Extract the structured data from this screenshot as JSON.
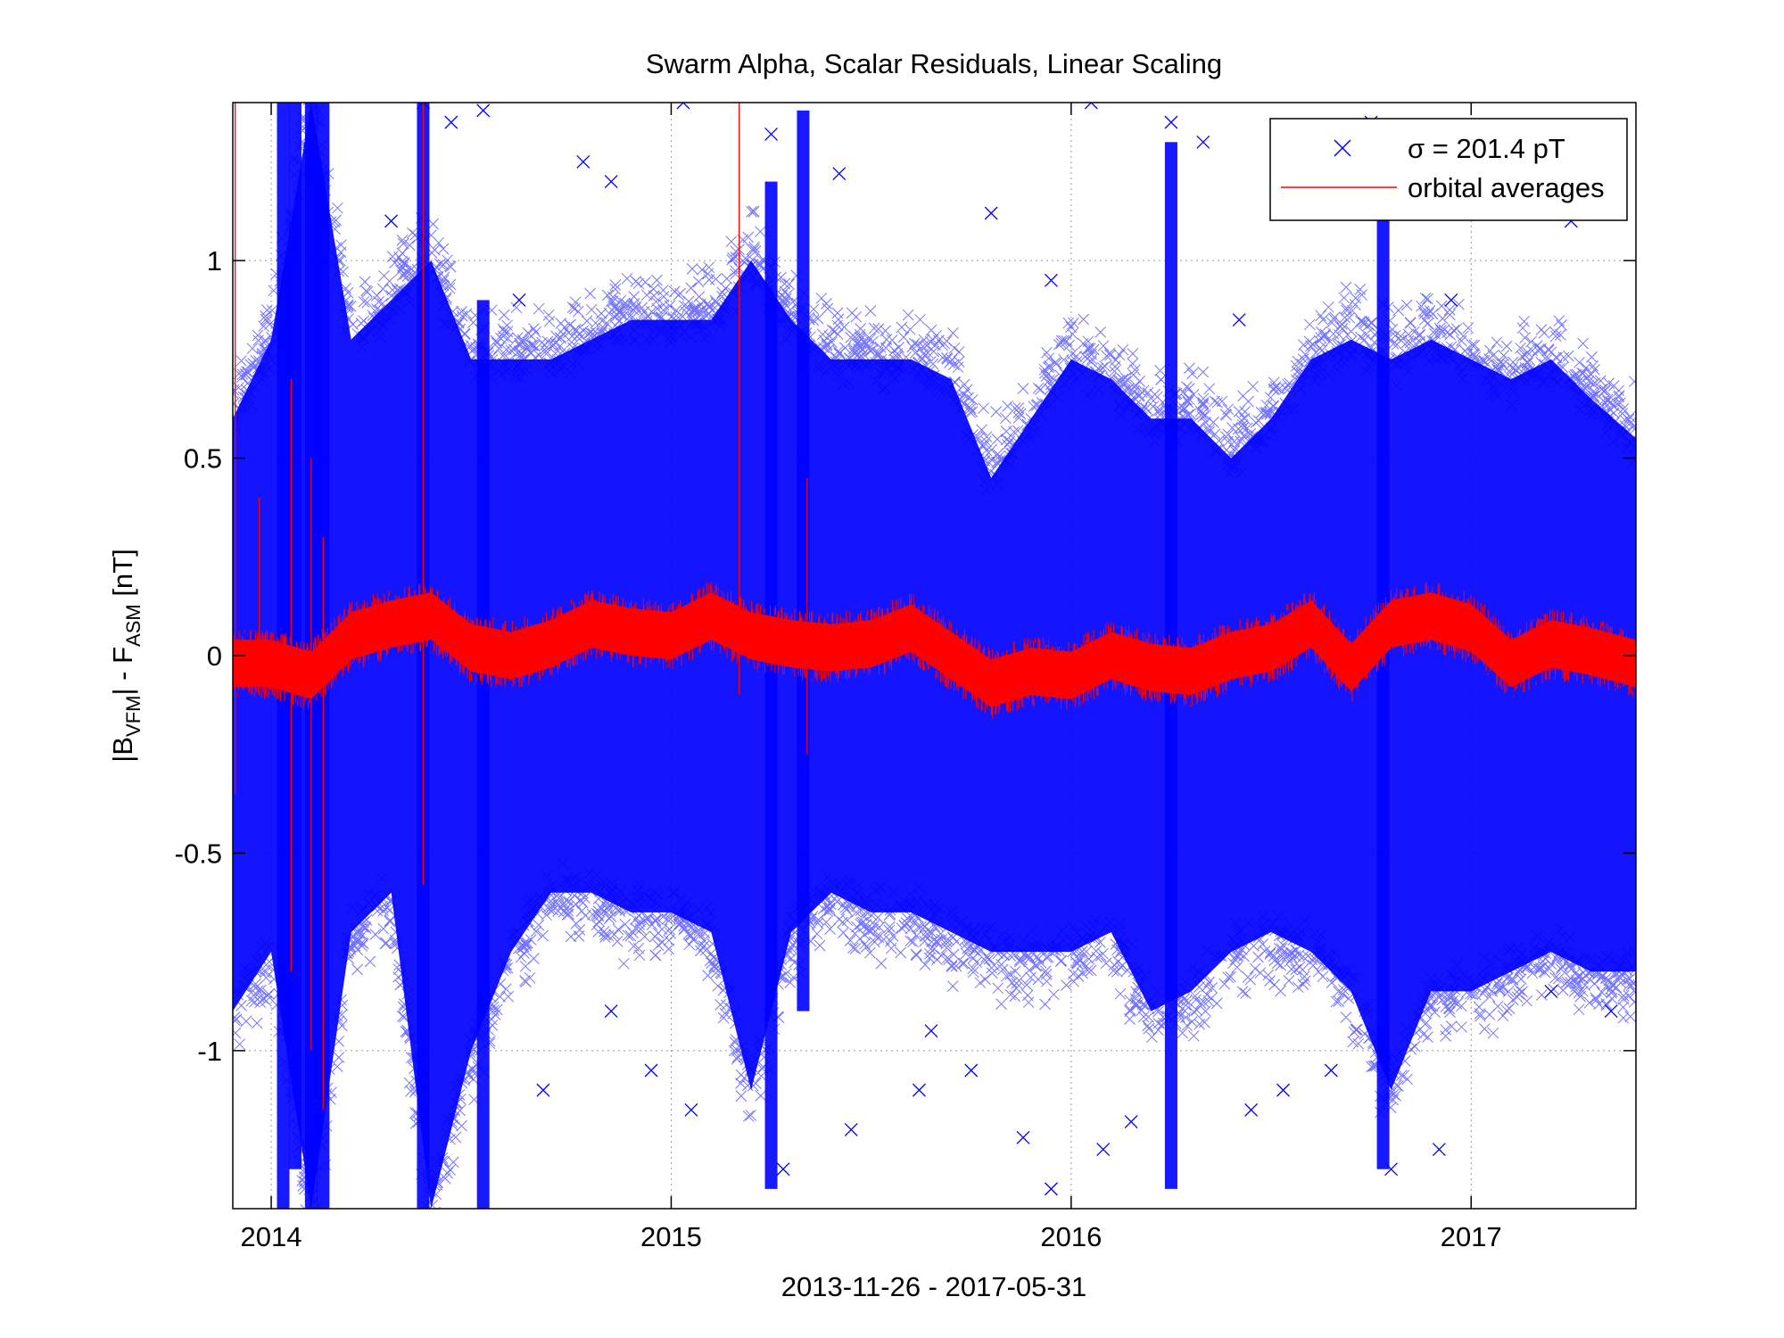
{
  "chart_data": {
    "type": "scatter",
    "title": "Swarm Alpha, Scalar Residuals, Linear Scaling",
    "xlabel": "2013-11-26 - 2017-05-31",
    "ylabel": {
      "prefix": "|B",
      "sub1": "VFM",
      "middle": "| - F",
      "sub2": "ASM",
      "suffix": " [nT]"
    },
    "x_date_range": [
      "2013-11-26",
      "2017-05-31"
    ],
    "xlim": [
      2013.904,
      2017.412
    ],
    "ylim": [
      -1.4,
      1.4
    ],
    "x_ticks": [
      {
        "value": 2014,
        "label": "2014"
      },
      {
        "value": 2015,
        "label": "2015"
      },
      {
        "value": 2016,
        "label": "2016"
      },
      {
        "value": 2017,
        "label": "2017"
      }
    ],
    "y_ticks": [
      {
        "value": -1,
        "label": "-1"
      },
      {
        "value": -0.5,
        "label": "-0.5"
      },
      {
        "value": 0,
        "label": "0"
      },
      {
        "value": 0.5,
        "label": "0.5"
      },
      {
        "value": 1,
        "label": "1"
      }
    ],
    "grid": true,
    "legend_position": "top-right",
    "series": [
      {
        "name": "σ = 201.4 pT",
        "kind": "scatter",
        "marker": "x",
        "color": "#0000ff",
        "band_envelope": {
          "x": [
            2013.904,
            2014.0,
            2014.1,
            2014.2,
            2014.3,
            2014.4,
            2014.5,
            2014.6,
            2014.7,
            2014.8,
            2014.9,
            2015.0,
            2015.1,
            2015.2,
            2015.3,
            2015.4,
            2015.5,
            2015.6,
            2015.7,
            2015.8,
            2015.9,
            2016.0,
            2016.1,
            2016.2,
            2016.3,
            2016.4,
            2016.5,
            2016.6,
            2016.7,
            2016.8,
            2016.9,
            2017.0,
            2017.1,
            2017.2,
            2017.3,
            2017.412
          ],
          "upper": [
            0.6,
            0.8,
            1.4,
            0.8,
            0.9,
            1.0,
            0.75,
            0.75,
            0.75,
            0.8,
            0.85,
            0.85,
            0.85,
            1.0,
            0.85,
            0.75,
            0.75,
            0.75,
            0.7,
            0.45,
            0.6,
            0.75,
            0.7,
            0.6,
            0.6,
            0.5,
            0.6,
            0.75,
            0.8,
            0.75,
            0.8,
            0.75,
            0.7,
            0.75,
            0.65,
            0.55
          ],
          "lower": [
            -0.9,
            -0.75,
            -1.4,
            -0.7,
            -0.6,
            -1.4,
            -1.0,
            -0.75,
            -0.6,
            -0.6,
            -0.65,
            -0.65,
            -0.7,
            -1.1,
            -0.7,
            -0.6,
            -0.65,
            -0.65,
            -0.7,
            -0.75,
            -0.75,
            -0.75,
            -0.7,
            -0.9,
            -0.85,
            -0.75,
            -0.7,
            -0.75,
            -0.85,
            -1.1,
            -0.85,
            -0.85,
            -0.8,
            -0.75,
            -0.8,
            -0.8
          ]
        },
        "outliers": [
          [
            2014.38,
            1.4
          ],
          [
            2014.45,
            1.35
          ],
          [
            2014.53,
            1.38
          ],
          [
            2015.03,
            1.4
          ],
          [
            2015.25,
            1.32
          ],
          [
            2014.78,
            1.25
          ],
          [
            2014.85,
            1.2
          ],
          [
            2015.42,
            1.22
          ],
          [
            2015.8,
            1.12
          ],
          [
            2016.05,
            1.4
          ],
          [
            2016.25,
            1.35
          ],
          [
            2016.33,
            1.3
          ],
          [
            2016.75,
            1.35
          ],
          [
            2017.15,
            1.28
          ],
          [
            2017.25,
            1.1
          ],
          [
            2015.95,
            0.95
          ],
          [
            2016.42,
            0.85
          ],
          [
            2016.95,
            0.9
          ],
          [
            2014.3,
            1.1
          ],
          [
            2014.62,
            0.9
          ],
          [
            2014.85,
            -0.9
          ],
          [
            2014.95,
            -1.05
          ],
          [
            2015.05,
            -1.15
          ],
          [
            2015.28,
            -1.3
          ],
          [
            2015.45,
            -1.2
          ],
          [
            2015.62,
            -1.1
          ],
          [
            2015.75,
            -1.05
          ],
          [
            2015.88,
            -1.22
          ],
          [
            2015.95,
            -1.35
          ],
          [
            2016.08,
            -1.25
          ],
          [
            2016.15,
            -1.18
          ],
          [
            2016.45,
            -1.15
          ],
          [
            2016.53,
            -1.1
          ],
          [
            2016.8,
            -1.3
          ],
          [
            2016.92,
            -1.25
          ],
          [
            2017.2,
            -0.85
          ],
          [
            2015.65,
            -0.95
          ],
          [
            2014.68,
            -1.1
          ],
          [
            2016.65,
            -1.05
          ],
          [
            2017.35,
            -0.9
          ]
        ],
        "spikes": [
          {
            "x": 2014.03,
            "lo": -1.4,
            "hi": 1.4
          },
          {
            "x": 2014.06,
            "lo": -1.3,
            "hi": 1.4
          },
          {
            "x": 2014.1,
            "lo": -1.4,
            "hi": 1.4
          },
          {
            "x": 2014.13,
            "lo": -1.4,
            "hi": 1.4
          },
          {
            "x": 2014.38,
            "lo": -1.4,
            "hi": 1.4
          },
          {
            "x": 2014.53,
            "lo": -1.4,
            "hi": 0.9
          },
          {
            "x": 2015.25,
            "lo": -1.35,
            "hi": 1.2
          },
          {
            "x": 2015.33,
            "lo": -0.9,
            "hi": 1.38
          },
          {
            "x": 2016.25,
            "lo": -1.35,
            "hi": 1.3
          },
          {
            "x": 2016.78,
            "lo": -1.3,
            "hi": 1.35
          }
        ]
      },
      {
        "name": "orbital averages",
        "kind": "line",
        "color": "#ff0000",
        "x": [
          2013.904,
          2014.0,
          2014.1,
          2014.2,
          2014.3,
          2014.4,
          2014.5,
          2014.6,
          2014.7,
          2014.8,
          2014.9,
          2015.0,
          2015.1,
          2015.2,
          2015.3,
          2015.4,
          2015.5,
          2015.6,
          2015.7,
          2015.8,
          2015.9,
          2016.0,
          2016.1,
          2016.2,
          2016.3,
          2016.4,
          2016.5,
          2016.6,
          2016.7,
          2016.8,
          2016.9,
          2017.0,
          2017.1,
          2017.2,
          2017.3,
          2017.412
        ],
        "y": [
          -0.02,
          -0.02,
          -0.05,
          0.05,
          0.08,
          0.1,
          0.02,
          0.0,
          0.03,
          0.08,
          0.06,
          0.05,
          0.1,
          0.05,
          0.03,
          0.02,
          0.03,
          0.07,
          0.0,
          -0.07,
          -0.04,
          -0.05,
          0.0,
          -0.03,
          -0.04,
          0.0,
          0.02,
          0.08,
          -0.03,
          0.08,
          0.1,
          0.07,
          -0.02,
          0.03,
          0.01,
          -0.02
        ],
        "band_halfwidth": 0.06,
        "spikes": [
          {
            "x": 2013.91,
            "lo": -0.35,
            "hi": 1.4
          },
          {
            "x": 2013.97,
            "lo": -0.1,
            "hi": 0.4
          },
          {
            "x": 2014.05,
            "lo": -0.8,
            "hi": 0.7
          },
          {
            "x": 2014.1,
            "lo": -1.0,
            "hi": 0.5
          },
          {
            "x": 2014.13,
            "lo": -1.15,
            "hi": 0.3
          },
          {
            "x": 2014.38,
            "lo": -0.58,
            "hi": 1.4
          },
          {
            "x": 2015.17,
            "lo": -0.1,
            "hi": 1.4
          },
          {
            "x": 2015.34,
            "lo": -0.25,
            "hi": 0.45
          }
        ]
      }
    ]
  }
}
